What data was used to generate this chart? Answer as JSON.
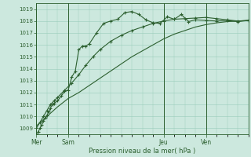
{
  "bg_color": "#cce8de",
  "grid_color": "#99ccbb",
  "line_color": "#2d6030",
  "title": "Pression niveau de la mer( hPa )",
  "ylim": [
    1008.5,
    1019.5
  ],
  "yticks": [
    1009,
    1010,
    1011,
    1012,
    1013,
    1014,
    1015,
    1016,
    1017,
    1018,
    1019
  ],
  "day_labels": [
    "Mer",
    "Sam",
    "Jeu",
    "Ven"
  ],
  "day_positions": [
    0,
    18,
    72,
    96
  ],
  "xlim": [
    0,
    120
  ],
  "series1_x": [
    0,
    1,
    2,
    3,
    4,
    5,
    6,
    7,
    8,
    9,
    10,
    12,
    14,
    16,
    18,
    20,
    22,
    24,
    26,
    28,
    30,
    34,
    38,
    42,
    46,
    50,
    54,
    58,
    62,
    66,
    70,
    74,
    78,
    82,
    86,
    90,
    96,
    102,
    108,
    114,
    120
  ],
  "series1_y": [
    1008.5,
    1008.7,
    1009.0,
    1009.3,
    1009.6,
    1009.9,
    1010.1,
    1010.4,
    1010.7,
    1011.0,
    1011.1,
    1011.3,
    1011.7,
    1012.1,
    1012.2,
    1013.3,
    1013.8,
    1015.6,
    1015.9,
    1015.9,
    1016.1,
    1017.0,
    1017.8,
    1018.0,
    1018.15,
    1018.7,
    1018.8,
    1018.55,
    1018.1,
    1017.85,
    1017.8,
    1018.35,
    1018.15,
    1018.55,
    1017.95,
    1018.1,
    1018.05,
    1018.0,
    1018.05,
    1017.95,
    1018.05
  ],
  "series2_x": [
    0,
    2,
    4,
    6,
    8,
    10,
    12,
    16,
    20,
    24,
    28,
    32,
    36,
    42,
    48,
    54,
    60,
    66,
    72,
    78,
    84,
    90,
    96,
    102,
    108,
    114,
    120
  ],
  "series2_y": [
    1009.0,
    1009.5,
    1010.0,
    1010.5,
    1011.0,
    1011.3,
    1011.6,
    1012.2,
    1012.8,
    1013.5,
    1014.3,
    1015.0,
    1015.6,
    1016.3,
    1016.8,
    1017.2,
    1017.5,
    1017.8,
    1018.0,
    1018.15,
    1018.2,
    1018.25,
    1018.3,
    1018.2,
    1018.1,
    1018.0,
    1018.05
  ],
  "series3_x": [
    0,
    6,
    12,
    18,
    24,
    30,
    36,
    42,
    48,
    54,
    60,
    66,
    72,
    78,
    84,
    90,
    96,
    102,
    108,
    114,
    120
  ],
  "series3_y": [
    1009.2,
    1010.0,
    1010.8,
    1011.5,
    1012.0,
    1012.6,
    1013.2,
    1013.8,
    1014.4,
    1015.0,
    1015.5,
    1016.0,
    1016.5,
    1016.9,
    1017.2,
    1017.5,
    1017.7,
    1017.85,
    1017.95,
    1018.0,
    1018.05
  ]
}
